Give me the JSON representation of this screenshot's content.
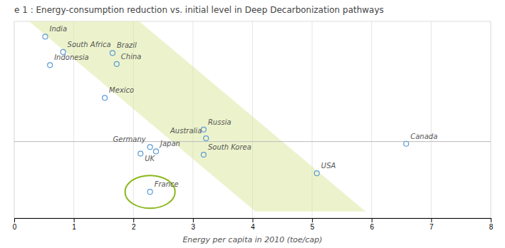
{
  "chart_data": {
    "type": "scatter",
    "title": "e 1 : Energy-consumption reduction vs. initial level in Deep Decarbonization pathways",
    "x_label": "Energy per capita in 2010  (toe/cap)",
    "xlim": [
      0.0,
      8.0
    ],
    "xticks": [
      0,
      1,
      2,
      3,
      4,
      5,
      6,
      7,
      8
    ],
    "ylim": [
      -3.5,
      5.5
    ],
    "grid": "x",
    "tick_labels": "x",
    "marker": "circle",
    "color": "#5b9bd5",
    "labels": [
      "India",
      "South Africa",
      "Indonesia",
      "Brazil",
      "China",
      "Mexico",
      "Russia",
      "Australia",
      "Germany",
      "UK",
      "Japan",
      "South Korea",
      "Canada",
      "USA",
      "France"
    ],
    "x": [
      0.52,
      0.82,
      0.6,
      1.65,
      1.72,
      1.52,
      3.18,
      3.22,
      2.28,
      2.12,
      2.38,
      3.18,
      6.58,
      5.08,
      2.28
    ],
    "values": [
      4.8,
      4.1,
      3.5,
      4.05,
      3.55,
      2.0,
      0.55,
      0.15,
      -0.25,
      -0.55,
      -0.45,
      -0.6,
      -0.1,
      -1.45,
      -2.3
    ],
    "annotations": [
      {
        "type": "polygon",
        "points": [
          [
            0.25,
            5.5
          ],
          [
            2.1,
            5.5
          ],
          [
            5.9,
            -3.2
          ],
          [
            4.05,
            -3.2
          ]
        ],
        "color": "#d9e89a"
      },
      {
        "type": "ellipse",
        "x": 2.28,
        "y": -2.3,
        "rx": 0.42,
        "ry": 0.75,
        "color": "#8ab81a"
      },
      {
        "type": "hline",
        "y": 0
      }
    ]
  }
}
